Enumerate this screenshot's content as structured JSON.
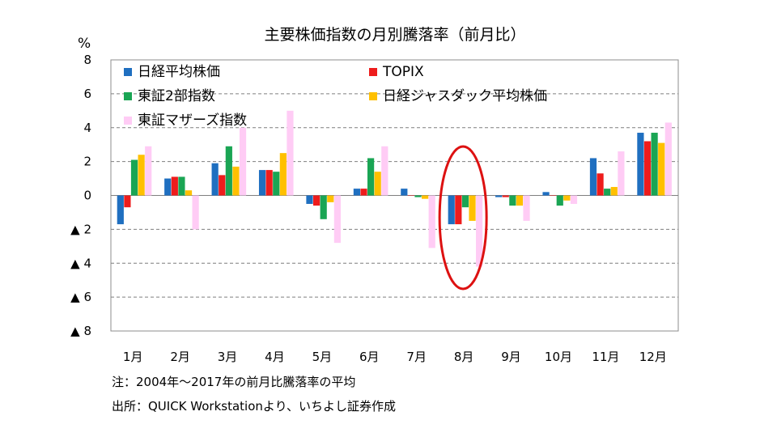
{
  "chart_data": {
    "type": "bar",
    "title": "主要株価指数の月別騰落率（前月比）",
    "ylabel": "%",
    "ylim": [
      -8,
      8
    ],
    "yticks": [
      8,
      6,
      4,
      2,
      0,
      -2,
      -4,
      -6,
      -8
    ],
    "ytick_labels": [
      "8",
      "6",
      "4",
      "2",
      "0",
      "▲ 2",
      "▲ 4",
      "▲ 6",
      "▲ 8"
    ],
    "grid": true,
    "legend_position": "top-left, inside plot",
    "categories": [
      "1月",
      "2月",
      "3月",
      "4月",
      "5月",
      "6月",
      "7月",
      "8月",
      "9月",
      "10月",
      "11月",
      "12月"
    ],
    "series": [
      {
        "name": "日経平均株価",
        "color": "#1f6fc0",
        "values": [
          -1.7,
          1.0,
          1.9,
          1.5,
          -0.5,
          0.4,
          0.4,
          -1.7,
          -0.1,
          0.2,
          2.2,
          3.7
        ]
      },
      {
        "name": "TOPIX",
        "color": "#ee1c1c",
        "values": [
          -0.7,
          1.1,
          1.2,
          1.5,
          -0.6,
          0.4,
          0.0,
          -1.7,
          -0.1,
          0.0,
          1.3,
          3.2
        ]
      },
      {
        "name": "東証2部指数",
        "color": "#1aa554",
        "values": [
          2.1,
          1.1,
          2.9,
          1.4,
          -1.4,
          2.2,
          -0.1,
          -0.7,
          -0.6,
          -0.6,
          0.4,
          3.7
        ]
      },
      {
        "name": "日経ジャスダック平均株価",
        "color": "#ffc000",
        "values": [
          2.4,
          0.3,
          1.7,
          2.5,
          -0.4,
          1.4,
          -0.2,
          -1.5,
          -0.6,
          -0.3,
          0.5,
          3.1
        ]
      },
      {
        "name": "東証マザーズ指数",
        "color": "#ffccf5",
        "values": [
          2.9,
          -2.0,
          4.0,
          5.0,
          -2.8,
          2.9,
          -3.1,
          -4.2,
          -1.5,
          -0.5,
          2.6,
          4.3
        ]
      }
    ],
    "annotations": [
      {
        "type": "ellipse-highlight",
        "category": "8月",
        "color": "#dd1111"
      }
    ]
  },
  "notes": {
    "note": "注：2004年～2017年の前月比騰落率の平均",
    "source": "出所：QUICK Workstationより、いちよし証券作成"
  }
}
